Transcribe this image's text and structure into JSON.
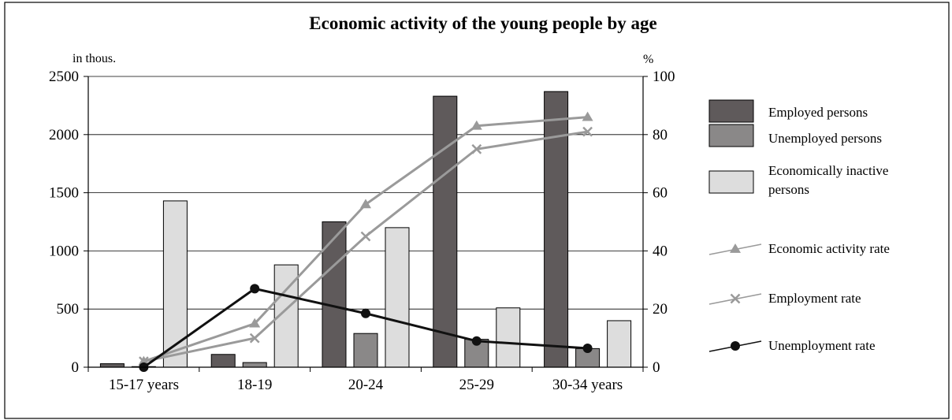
{
  "chart_data": {
    "type": "bar",
    "title": "Economic activity of the young people by age",
    "left_unit": "in thous.",
    "right_unit": "%",
    "categories": [
      "15-17 years",
      "18-19",
      "20-24",
      "25-29",
      "30-34 years"
    ],
    "y_left": {
      "min": 0,
      "max": 2500,
      "ticks": [
        "0",
        "500",
        "1000",
        "1500",
        "2000",
        "2500"
      ]
    },
    "y_right": {
      "min": 0,
      "max": 100,
      "ticks": [
        "0",
        "20",
        "40",
        "60",
        "80",
        "100"
      ]
    },
    "grid": true,
    "legend_position": "right",
    "bar_series": [
      {
        "name": "Employed persons",
        "values": [
          30,
          110,
          1250,
          2330,
          2370
        ],
        "color": "#5f5a5b"
      },
      {
        "name": "Unemployed persons",
        "values": [
          5,
          40,
          290,
          240,
          160
        ],
        "color": "#8a8888"
      },
      {
        "name": "Economically inactive persons",
        "values": [
          1430,
          880,
          1200,
          510,
          400
        ],
        "color": "#dddddd"
      }
    ],
    "line_series": [
      {
        "name": "Economic activity rate",
        "values": [
          2,
          15,
          56,
          83,
          86
        ],
        "color": "#9a9a9a",
        "marker": "triangle"
      },
      {
        "name": "Employment rate",
        "values": [
          2,
          10,
          45,
          75,
          81
        ],
        "color": "#9a9a9a",
        "marker": "x"
      },
      {
        "name": "Unemployment rate",
        "values": [
          0,
          27,
          18.5,
          9,
          6.5
        ],
        "color": "#111111",
        "marker": "circle"
      }
    ]
  }
}
